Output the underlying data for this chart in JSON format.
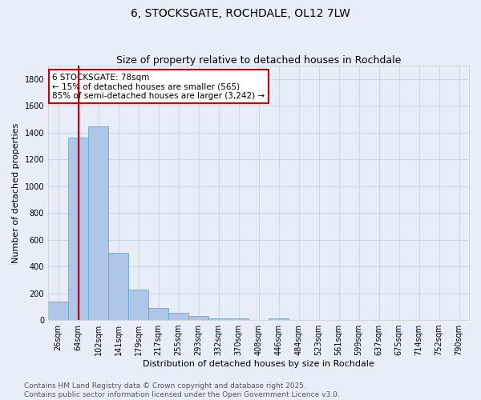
{
  "title1": "6, STOCKSGATE, ROCHDALE, OL12 7LW",
  "title2": "Size of property relative to detached houses in Rochdale",
  "xlabel": "Distribution of detached houses by size in Rochdale",
  "ylabel": "Number of detached properties",
  "categories": [
    "26sqm",
    "64sqm",
    "102sqm",
    "141sqm",
    "179sqm",
    "217sqm",
    "255sqm",
    "293sqm",
    "332sqm",
    "370sqm",
    "408sqm",
    "446sqm",
    "484sqm",
    "523sqm",
    "561sqm",
    "599sqm",
    "637sqm",
    "675sqm",
    "714sqm",
    "752sqm",
    "790sqm"
  ],
  "values": [
    140,
    1365,
    1445,
    500,
    230,
    90,
    52,
    30,
    15,
    15,
    0,
    15,
    0,
    0,
    0,
    0,
    0,
    0,
    0,
    0,
    0
  ],
  "bar_color": "#aec6e8",
  "bar_edge_color": "#5a9fd4",
  "vline_x": 1.0,
  "vline_color": "#cc0000",
  "annotation_line1": "6 STOCKSGATE: 78sqm",
  "annotation_line2": "← 15% of detached houses are smaller (565)",
  "annotation_line3": "85% of semi-detached houses are larger (3,242) →",
  "annotation_box_color": "#ffffff",
  "annotation_box_edge": "#cc0000",
  "ylim": [
    0,
    1900
  ],
  "yticks": [
    0,
    200,
    400,
    600,
    800,
    1000,
    1200,
    1400,
    1600,
    1800
  ],
  "grid_color": "#d0d8e8",
  "bg_color": "#e8eef8",
  "footer_text": "Contains HM Land Registry data © Crown copyright and database right 2025.\nContains public sector information licensed under the Open Government Licence v3.0.",
  "title_fontsize": 10,
  "subtitle_fontsize": 9,
  "tick_fontsize": 7,
  "ylabel_fontsize": 8,
  "xlabel_fontsize": 8,
  "footer_fontsize": 6.5,
  "annotation_fontsize": 7.5
}
